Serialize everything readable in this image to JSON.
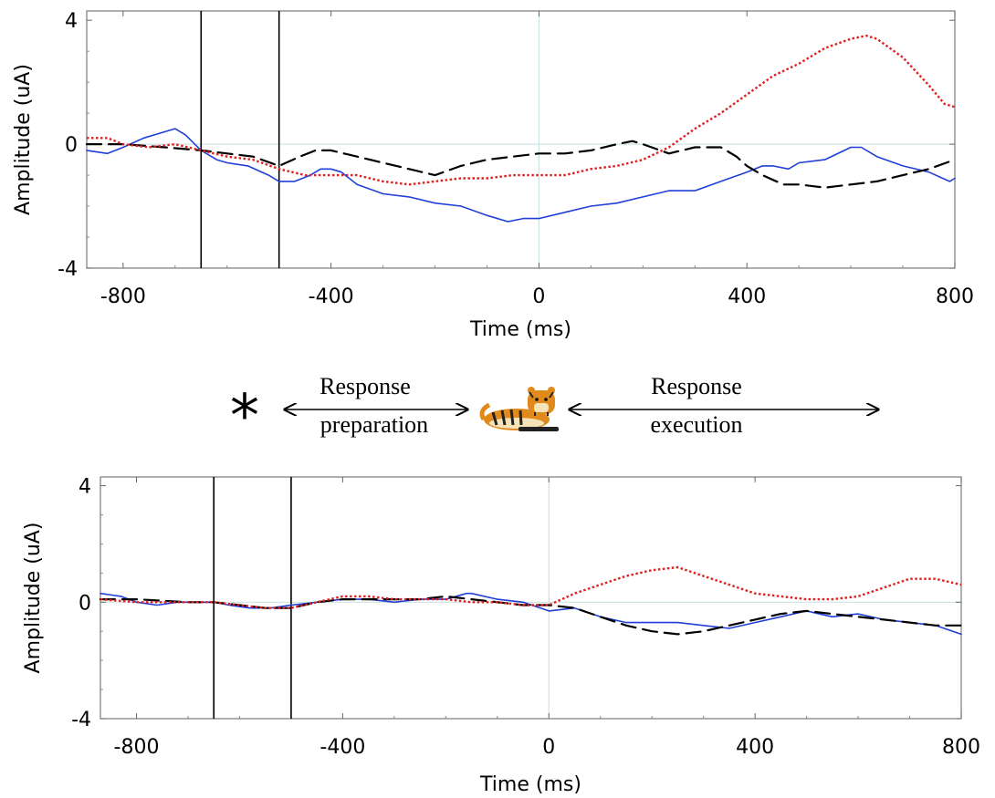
{
  "chart_data": [
    {
      "type": "line",
      "xlabel": "Time (ms)",
      "ylabel": "Amplitude (uA)",
      "xlim": [
        -870,
        800
      ],
      "ylim": [
        -4,
        4.3
      ],
      "xticks": [
        -800,
        -400,
        0,
        400,
        800
      ],
      "yticks": [
        -4,
        0,
        4
      ],
      "xtick_labels": [
        "-800",
        "-400",
        "0",
        "400",
        "800"
      ],
      "ytick_labels": [
        "-4",
        "0",
        "4"
      ],
      "vlines": [
        -650,
        -500
      ],
      "zero_line_x": 0,
      "zero_line_y": 0,
      "grid": false,
      "series": [
        {
          "color": "#1f3fd8",
          "style": "solid",
          "x": [
            -870,
            -830,
            -800,
            -760,
            -720,
            -700,
            -680,
            -650,
            -620,
            -600,
            -560,
            -520,
            -500,
            -470,
            -440,
            -420,
            -400,
            -380,
            -350,
            -300,
            -250,
            -200,
            -150,
            -100,
            -60,
            -30,
            0,
            50,
            100,
            150,
            200,
            250,
            300,
            350,
            400,
            430,
            450,
            480,
            500,
            550,
            600,
            620,
            650,
            700,
            750,
            790,
            800
          ],
          "y": [
            -0.2,
            -0.3,
            -0.1,
            0.2,
            0.4,
            0.5,
            0.3,
            -0.2,
            -0.5,
            -0.6,
            -0.7,
            -1.0,
            -1.2,
            -1.2,
            -1.0,
            -0.8,
            -0.8,
            -0.9,
            -1.3,
            -1.6,
            -1.7,
            -1.9,
            -2.0,
            -2.3,
            -2.5,
            -2.4,
            -2.4,
            -2.2,
            -2.0,
            -1.9,
            -1.7,
            -1.5,
            -1.5,
            -1.2,
            -0.9,
            -0.7,
            -0.7,
            -0.8,
            -0.6,
            -0.5,
            -0.1,
            -0.1,
            -0.4,
            -0.7,
            -0.9,
            -1.2,
            -1.1
          ]
        },
        {
          "color": "#000000",
          "style": "dashed",
          "x": [
            -870,
            -800,
            -720,
            -650,
            -600,
            -550,
            -500,
            -460,
            -430,
            -400,
            -350,
            -300,
            -250,
            -200,
            -150,
            -100,
            -50,
            0,
            50,
            100,
            150,
            180,
            200,
            250,
            300,
            350,
            380,
            400,
            430,
            470,
            500,
            550,
            600,
            650,
            700,
            750,
            800
          ],
          "y": [
            0.0,
            0.0,
            -0.1,
            -0.2,
            -0.3,
            -0.4,
            -0.7,
            -0.4,
            -0.2,
            -0.2,
            -0.4,
            -0.6,
            -0.8,
            -1.0,
            -0.7,
            -0.5,
            -0.4,
            -0.3,
            -0.3,
            -0.2,
            0.0,
            0.1,
            0.0,
            -0.3,
            -0.1,
            -0.1,
            -0.4,
            -0.7,
            -1.0,
            -1.3,
            -1.3,
            -1.4,
            -1.3,
            -1.2,
            -1.0,
            -0.8,
            -0.5
          ]
        },
        {
          "color": "#e02020",
          "style": "dotted",
          "x": [
            -870,
            -830,
            -800,
            -750,
            -700,
            -650,
            -600,
            -550,
            -500,
            -450,
            -400,
            -350,
            -300,
            -250,
            -200,
            -150,
            -100,
            -50,
            0,
            50,
            100,
            150,
            200,
            250,
            300,
            350,
            400,
            450,
            500,
            550,
            600,
            630,
            650,
            700,
            750,
            780,
            800
          ],
          "y": [
            0.2,
            0.2,
            0.0,
            -0.1,
            0.0,
            -0.2,
            -0.4,
            -0.5,
            -0.8,
            -1.0,
            -1.0,
            -1.0,
            -1.2,
            -1.3,
            -1.2,
            -1.1,
            -1.1,
            -1.0,
            -1.0,
            -1.0,
            -0.8,
            -0.7,
            -0.5,
            -0.1,
            0.5,
            1.0,
            1.6,
            2.2,
            2.6,
            3.1,
            3.4,
            3.5,
            3.4,
            2.8,
            1.9,
            1.3,
            1.2
          ]
        }
      ]
    },
    {
      "type": "line",
      "xlabel": "Time (ms)",
      "ylabel": "Amplitude (uA)",
      "xlim": [
        -870,
        800
      ],
      "ylim": [
        -4,
        4.3
      ],
      "xticks": [
        -800,
        -400,
        0,
        400,
        800
      ],
      "yticks": [
        -4,
        0,
        4
      ],
      "xtick_labels": [
        "-800",
        "-400",
        "0",
        "400",
        "800"
      ],
      "ytick_labels": [
        "-4",
        "0",
        "4"
      ],
      "vlines": [
        -650,
        -500
      ],
      "zero_line_x": 0,
      "zero_line_y": 0,
      "grid": false,
      "series": [
        {
          "color": "#1f3fd8",
          "style": "solid",
          "x": [
            -870,
            -830,
            -800,
            -760,
            -720,
            -680,
            -650,
            -620,
            -580,
            -540,
            -500,
            -450,
            -400,
            -350,
            -300,
            -250,
            -200,
            -160,
            -150,
            -100,
            -50,
            0,
            50,
            100,
            150,
            200,
            250,
            300,
            350,
            400,
            450,
            500,
            550,
            600,
            650,
            700,
            750,
            800
          ],
          "y": [
            0.3,
            0.2,
            0.0,
            -0.1,
            0.0,
            0.0,
            0.0,
            -0.1,
            -0.2,
            -0.2,
            -0.1,
            0.0,
            0.1,
            0.1,
            0.0,
            0.1,
            0.1,
            0.3,
            0.3,
            0.1,
            0.0,
            -0.3,
            -0.2,
            -0.5,
            -0.7,
            -0.7,
            -0.7,
            -0.8,
            -0.9,
            -0.7,
            -0.5,
            -0.3,
            -0.5,
            -0.4,
            -0.6,
            -0.7,
            -0.8,
            -1.1
          ]
        },
        {
          "color": "#000000",
          "style": "dashed",
          "x": [
            -870,
            -800,
            -700,
            -650,
            -600,
            -550,
            -500,
            -450,
            -400,
            -350,
            -300,
            -250,
            -200,
            -150,
            -100,
            -50,
            0,
            50,
            100,
            150,
            200,
            250,
            300,
            350,
            400,
            450,
            500,
            550,
            600,
            650,
            700,
            750,
            800
          ],
          "y": [
            0.1,
            0.1,
            0.0,
            0.0,
            -0.1,
            -0.2,
            -0.2,
            0.0,
            0.1,
            0.1,
            0.1,
            0.1,
            0.2,
            0.1,
            0.0,
            -0.1,
            -0.1,
            -0.2,
            -0.5,
            -0.8,
            -1.0,
            -1.1,
            -1.0,
            -0.8,
            -0.6,
            -0.4,
            -0.3,
            -0.4,
            -0.5,
            -0.6,
            -0.7,
            -0.8,
            -0.8
          ]
        },
        {
          "color": "#e02020",
          "style": "dotted",
          "x": [
            -870,
            -800,
            -700,
            -650,
            -600,
            -550,
            -500,
            -450,
            -400,
            -350,
            -300,
            -250,
            -200,
            -150,
            -100,
            -50,
            0,
            50,
            100,
            150,
            200,
            250,
            300,
            350,
            400,
            450,
            500,
            550,
            600,
            650,
            700,
            750,
            800
          ],
          "y": [
            0.1,
            0.0,
            0.0,
            0.0,
            -0.1,
            -0.2,
            -0.2,
            0.0,
            0.2,
            0.2,
            0.1,
            0.1,
            0.1,
            0.0,
            0.0,
            -0.1,
            -0.1,
            0.3,
            0.6,
            0.9,
            1.1,
            1.2,
            0.9,
            0.6,
            0.3,
            0.2,
            0.1,
            0.1,
            0.2,
            0.5,
            0.8,
            0.8,
            0.6
          ]
        }
      ]
    }
  ],
  "timeline": {
    "asterisk": "*",
    "preparation_line1": "Response",
    "preparation_line2": "preparation",
    "execution_line1": "Response",
    "execution_line2": "execution",
    "stimulus_icon": "tiger-icon"
  }
}
